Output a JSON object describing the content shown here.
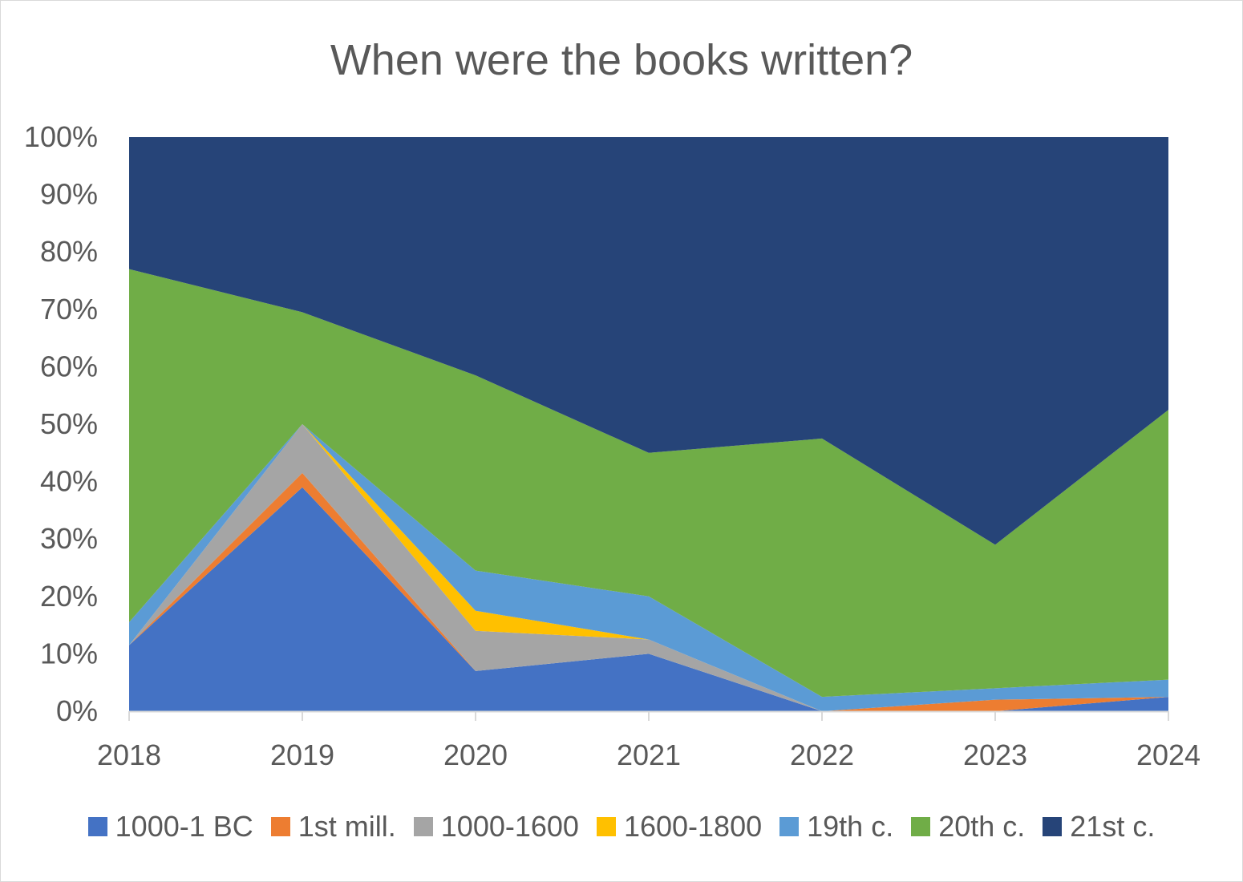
{
  "chart_data": {
    "type": "area",
    "stacked": true,
    "percent": true,
    "title": "When were the books written?",
    "xlabel": "",
    "ylabel": "",
    "x": [
      "2018",
      "2019",
      "2020",
      "2021",
      "2022",
      "2023",
      "2024"
    ],
    "ylim": [
      0,
      100
    ],
    "yticks": [
      "0%",
      "10%",
      "20%",
      "30%",
      "40%",
      "50%",
      "60%",
      "70%",
      "80%",
      "90%",
      "100%"
    ],
    "grid": false,
    "legend": "bottom",
    "series": [
      {
        "name": "1000-1 BC",
        "color": "#4472c4",
        "values": [
          11.5,
          39,
          7,
          10,
          0,
          0,
          2.5
        ]
      },
      {
        "name": "1st mill.",
        "color": "#ed7d31",
        "values": [
          0,
          2.5,
          0,
          0,
          0,
          2,
          0
        ]
      },
      {
        "name": "1000-1600",
        "color": "#a5a5a5",
        "values": [
          0,
          8.5,
          7,
          2.5,
          0,
          0,
          0
        ]
      },
      {
        "name": "1600-1800",
        "color": "#ffc000",
        "values": [
          0,
          0,
          3.5,
          0,
          0,
          0,
          0
        ]
      },
      {
        "name": "19th c.",
        "color": "#5b9bd5",
        "values": [
          4,
          0,
          7,
          7.5,
          2.5,
          2,
          3
        ]
      },
      {
        "name": "20th c.",
        "color": "#70ad47",
        "values": [
          61.5,
          19.5,
          34,
          25,
          45,
          25,
          47
        ]
      },
      {
        "name": "21st c.",
        "color": "#264478",
        "values": [
          23,
          30.5,
          41.5,
          55,
          52.5,
          71,
          47.5
        ]
      }
    ]
  }
}
